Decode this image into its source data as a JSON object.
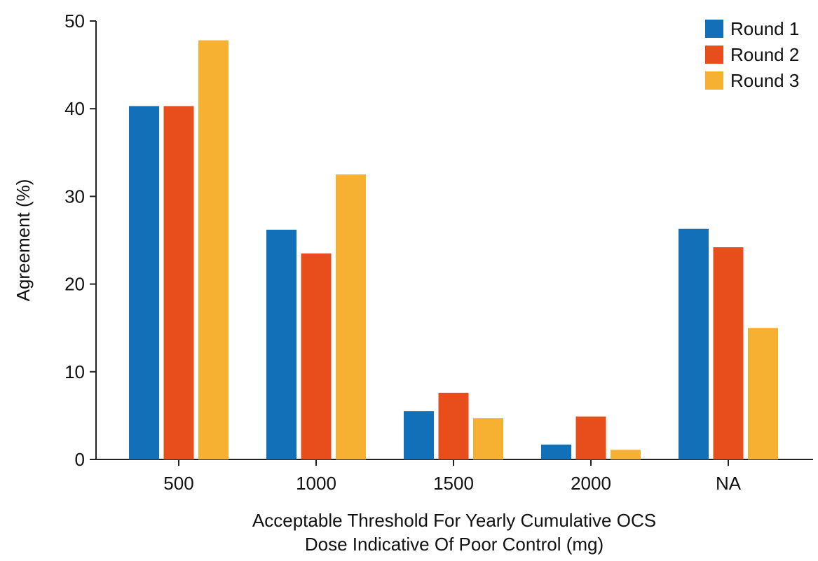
{
  "chart_data": {
    "type": "bar",
    "title": "",
    "xlabel": [
      "Acceptable Threshold For Yearly Cumulative OCS",
      "Dose Indicative Of Poor Control (mg)"
    ],
    "ylabel": "Agreement (%)",
    "ylim": [
      0,
      50
    ],
    "yticks": [
      0,
      10,
      20,
      30,
      40,
      50
    ],
    "grid": false,
    "legend_position": "top-right",
    "categories": [
      "500",
      "1000",
      "1500",
      "2000",
      "NA"
    ],
    "series": [
      {
        "name": "Round 1",
        "color": "#1170B8",
        "values": [
          40.3,
          26.2,
          5.5,
          1.7,
          26.3
        ]
      },
      {
        "name": "Round 2",
        "color": "#E84E1B",
        "values": [
          40.3,
          23.5,
          7.6,
          4.9,
          24.2
        ]
      },
      {
        "name": "Round 3",
        "color": "#F7B132",
        "values": [
          47.8,
          32.5,
          4.7,
          1.1,
          15.0
        ]
      }
    ]
  }
}
